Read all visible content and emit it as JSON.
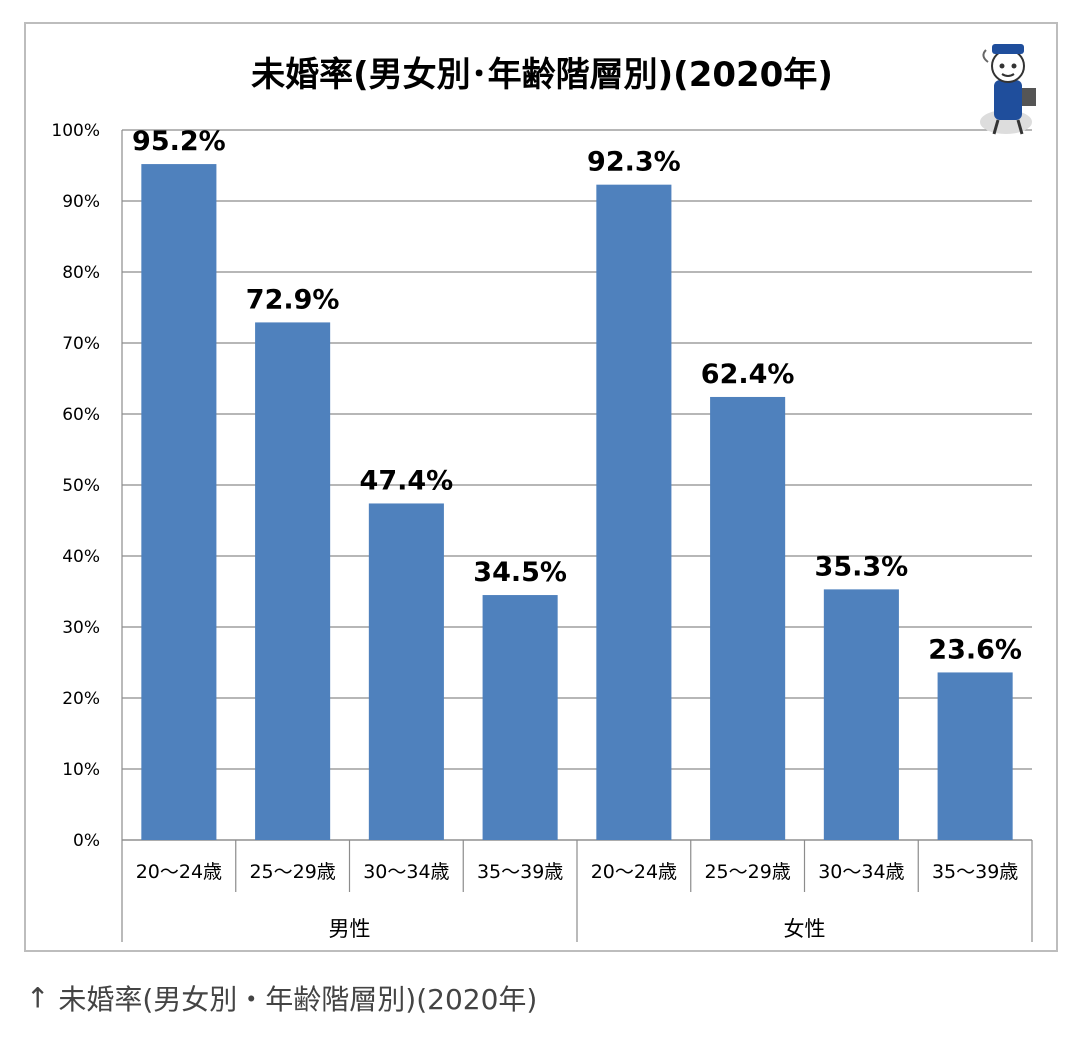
{
  "chart_data": {
    "type": "bar",
    "title": "未婚率(男女別･年齢階層別)(2020年)",
    "xlabel": "",
    "ylabel": "",
    "ylim": [
      0,
      100
    ],
    "yticks": [
      "0%",
      "10%",
      "20%",
      "30%",
      "40%",
      "50%",
      "60%",
      "70%",
      "80%",
      "90%",
      "100%"
    ],
    "grid": true,
    "groups": [
      {
        "name": "男性",
        "categories": [
          "20～24歳",
          "25～29歳",
          "30～34歳",
          "35～39歳"
        ],
        "values": [
          95.2,
          72.9,
          47.4,
          34.5
        ],
        "labels": [
          "95.2%",
          "72.9%",
          "47.4%",
          "34.5%"
        ]
      },
      {
        "name": "女性",
        "categories": [
          "20～24歳",
          "25～29歳",
          "30～34歳",
          "35～39歳"
        ],
        "values": [
          92.3,
          62.4,
          35.3,
          23.6
        ],
        "labels": [
          "92.3%",
          "62.4%",
          "35.3%",
          "23.6%"
        ]
      }
    ],
    "bar_color": "#4f81bd"
  },
  "caption": {
    "arrow": "↑",
    "text": "未婚率(男女別・年齢階層別)(2020年)"
  },
  "mascot": {
    "icon": "mascot-icon"
  }
}
